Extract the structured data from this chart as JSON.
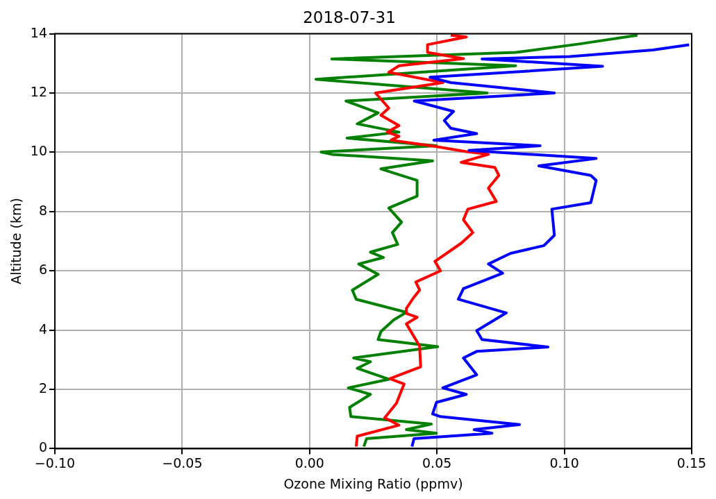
{
  "chart_data": {
    "type": "line",
    "title": "2018-07-31",
    "xlabel": "Ozone Mixing Ratio (ppmv)",
    "ylabel": "Altitude (km)",
    "xlim": [
      -0.1,
      0.15
    ],
    "xticks": [
      {
        "value": -0.1,
        "label": "−0.10"
      },
      {
        "value": -0.05,
        "label": "−0.05"
      },
      {
        "value": 0,
        "label": "0.00"
      },
      {
        "value": 0.05,
        "label": "0.05"
      },
      {
        "value": 0.1,
        "label": "0.10"
      },
      {
        "value": 0.15,
        "label": "0.15"
      }
    ],
    "ylim": [
      0,
      14
    ],
    "yticks": [
      0,
      2,
      4,
      6,
      8,
      10,
      12,
      14
    ],
    "grid": true,
    "series": [
      {
        "color": "#0000ff",
        "x": [
          0.0402,
          0.041,
          0.0716,
          0.0646,
          0.0824,
          0.0514,
          0.0483,
          0.0498,
          0.0615,
          0.0523,
          0.0656,
          0.0604,
          0.0656,
          0.0936,
          0.0677,
          0.0656,
          0.0772,
          0.0584,
          0.0604,
          0.0758,
          0.0702,
          0.0789,
          0.092,
          0.0961,
          0.0951,
          0.1104,
          0.1125,
          0.1104,
          0.09,
          0.1125,
          0.0626,
          0.0905,
          0.0488,
          0.0656,
          0.0554,
          0.0529,
          0.0565,
          0.0411,
          0.0961,
          0.0554,
          0.0473,
          0.115,
          0.0677,
          0.1021,
          0.1348,
          0.149
        ],
        "values": [
          0.07,
          0.34,
          0.52,
          0.64,
          0.81,
          1.08,
          1.17,
          1.56,
          1.83,
          2.05,
          2.49,
          3.06,
          3.28,
          3.43,
          3.68,
          3.98,
          4.58,
          5.04,
          5.4,
          5.92,
          6.23,
          6.59,
          6.85,
          7.2,
          8.08,
          8.3,
          9.05,
          9.22,
          9.54,
          9.79,
          10.06,
          10.22,
          10.41,
          10.63,
          10.81,
          11.07,
          11.38,
          11.73,
          12.0,
          12.35,
          12.53,
          12.9,
          13.15,
          13.23,
          13.45,
          13.63
        ]
      },
      {
        "color": "#ff0000",
        "x": [
          0.0183,
          0.0187,
          0.0351,
          0.0295,
          0.0341,
          0.0371,
          0.0315,
          0.0436,
          0.0432,
          0.038,
          0.0422,
          0.038,
          0.038,
          0.0407,
          0.0432,
          0.0417,
          0.0514,
          0.0492,
          0.0595,
          0.0641,
          0.0604,
          0.0621,
          0.0733,
          0.0702,
          0.0743,
          0.0727,
          0.0595,
          0.0702,
          0.0615,
          0.0498,
          0.032,
          0.0351,
          0.0305,
          0.0351,
          0.028,
          0.0311,
          0.0259,
          0.0523,
          0.0311,
          0.0351,
          0.0604,
          0.0463,
          0.0463,
          0.0615,
          0.0554
        ],
        "values": [
          0.07,
          0.42,
          0.79,
          1.04,
          1.53,
          2.18,
          2.36,
          2.76,
          3.46,
          4.21,
          4.43,
          4.56,
          4.73,
          5.08,
          5.35,
          5.62,
          6.0,
          6.32,
          6.93,
          7.29,
          7.72,
          8.08,
          8.34,
          8.79,
          9.22,
          9.49,
          9.66,
          9.93,
          10.02,
          10.19,
          10.41,
          10.54,
          10.68,
          10.9,
          11.25,
          11.49,
          12.0,
          12.35,
          12.7,
          12.92,
          13.16,
          13.37,
          13.63,
          13.89,
          13.95
        ]
      },
      {
        "color": "#008000",
        "x": [
          0.0213,
          0.0224,
          0.0498,
          0.038,
          0.0478,
          0.0162,
          0.0157,
          0.0239,
          0.0152,
          0.0311,
          0.0187,
          0.0239,
          0.0173,
          0.0503,
          0.0269,
          0.028,
          0.033,
          0.038,
          0.0183,
          0.0168,
          0.0269,
          0.0193,
          0.029,
          0.0239,
          0.0346,
          0.0325,
          0.0361,
          0.0311,
          0.0422,
          0.0422,
          0.028,
          0.0483,
          0.0087,
          0.0045,
          0.0498,
          0.0147,
          0.0351,
          0.0187,
          0.0269,
          0.0143,
          0.0697,
          0.0025,
          0.0809,
          0.0087,
          0.0809,
          0.1063,
          0.1287
        ],
        "values": [
          0.07,
          0.34,
          0.52,
          0.64,
          0.83,
          1.08,
          1.39,
          1.83,
          2.05,
          2.34,
          2.71,
          2.93,
          3.06,
          3.44,
          3.68,
          3.95,
          4.34,
          4.6,
          5.04,
          5.35,
          5.88,
          6.23,
          6.45,
          6.63,
          6.89,
          7.29,
          7.64,
          8.12,
          8.52,
          9.05,
          9.44,
          9.71,
          9.93,
          10.01,
          10.22,
          10.48,
          10.68,
          10.96,
          11.33,
          11.73,
          12.0,
          12.46,
          12.92,
          13.15,
          13.37,
          13.66,
          13.95
        ]
      }
    ]
  }
}
